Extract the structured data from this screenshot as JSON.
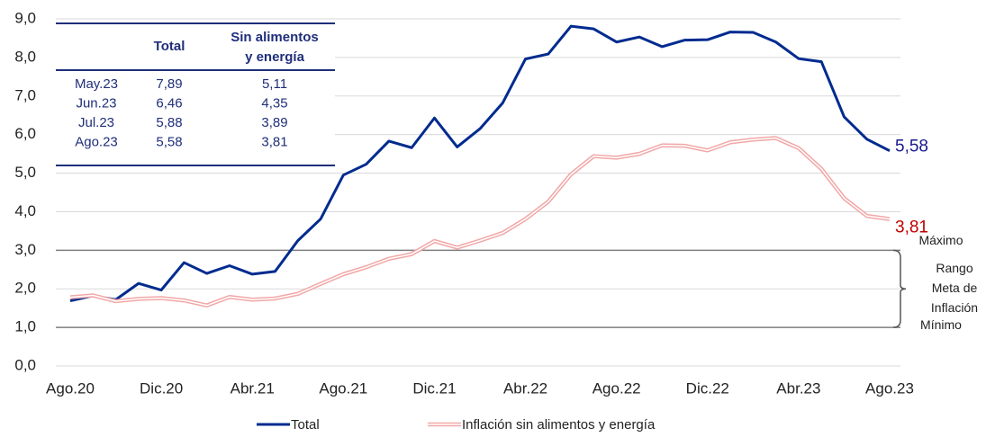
{
  "chart_data": {
    "type": "line",
    "categories": [
      "Ago.20",
      null,
      null,
      null,
      "Dic.20",
      null,
      null,
      null,
      "Abr.21",
      null,
      null,
      null,
      "Ago.21",
      null,
      null,
      null,
      "Dic.21",
      null,
      null,
      null,
      "Abr.22",
      null,
      null,
      null,
      "Ago.22",
      null,
      null,
      null,
      "Dic.22",
      null,
      null,
      null,
      "Abr.23",
      null,
      null,
      null,
      "Ago.23"
    ],
    "series": [
      {
        "name": "Total",
        "color": "#002b8f",
        "label_color": "#1a1a8f",
        "values": [
          1.69,
          1.82,
          1.72,
          2.14,
          1.97,
          2.68,
          2.4,
          2.6,
          2.38,
          2.45,
          3.25,
          3.81,
          4.95,
          5.23,
          5.83,
          5.66,
          6.43,
          5.68,
          6.15,
          6.82,
          7.96,
          8.09,
          8.81,
          8.74,
          8.4,
          8.53,
          8.28,
          8.45,
          8.46,
          8.66,
          8.65,
          8.4,
          7.97,
          7.89,
          6.46,
          5.88,
          5.58
        ],
        "value_labels": [
          null,
          null,
          null,
          null,
          null,
          null,
          null,
          null,
          null,
          null,
          null,
          null,
          null,
          null,
          null,
          null,
          null,
          null,
          null,
          null,
          null,
          null,
          null,
          null,
          null,
          null,
          null,
          null,
          null,
          null,
          null,
          null,
          null,
          null,
          null,
          null,
          "5,58"
        ]
      },
      {
        "name": "Inflación sin alimentos y energía",
        "color": "#f2a7a7",
        "outline": true,
        "label_color": "#c00000",
        "values": [
          1.78,
          1.83,
          1.68,
          1.74,
          1.76,
          1.7,
          1.57,
          1.79,
          1.72,
          1.75,
          1.87,
          2.13,
          2.38,
          2.56,
          2.78,
          2.9,
          3.24,
          3.07,
          3.25,
          3.45,
          3.81,
          4.26,
          4.97,
          5.44,
          5.4,
          5.5,
          5.72,
          5.71,
          5.59,
          5.8,
          5.87,
          5.91,
          5.65,
          5.11,
          4.35,
          3.89,
          3.81
        ],
        "value_labels": [
          null,
          null,
          null,
          null,
          null,
          null,
          null,
          null,
          null,
          null,
          null,
          null,
          null,
          null,
          null,
          null,
          null,
          null,
          null,
          null,
          null,
          null,
          null,
          null,
          null,
          null,
          null,
          null,
          null,
          null,
          null,
          null,
          null,
          null,
          null,
          null,
          "3,81"
        ]
      }
    ],
    "ylim": [
      0,
      9
    ],
    "yticks": [
      {
        "value": 0,
        "label": "0,0"
      },
      {
        "value": 1,
        "label": "1,0"
      },
      {
        "value": 2,
        "label": "2,0"
      },
      {
        "value": 3,
        "label": "3,0"
      },
      {
        "value": 4,
        "label": "4,0"
      },
      {
        "value": 5,
        "label": "5,0"
      },
      {
        "value": 6,
        "label": "6,0"
      },
      {
        "value": 7,
        "label": "7,0"
      },
      {
        "value": 8,
        "label": "8,0"
      },
      {
        "value": 9,
        "label": "9,0"
      }
    ],
    "grid": true,
    "legend": "bottom",
    "target_range": [
      1,
      3
    ],
    "target_labels": {
      "max": "Máximo",
      "range": [
        "Rango",
        "Meta de",
        "Inflación"
      ],
      "min": "Mínimo"
    },
    "table": {
      "columns": [
        "Total",
        [
          "Sin alimentos",
          "y energía"
        ]
      ],
      "rows": [
        [
          "May.23",
          "7,89",
          "5,11"
        ],
        [
          "Jun.23",
          "6,46",
          "4,35"
        ],
        [
          "Jul.23",
          "5,88",
          "3,89"
        ],
        [
          "Ago.23",
          "5,58",
          "3,81"
        ]
      ]
    }
  }
}
